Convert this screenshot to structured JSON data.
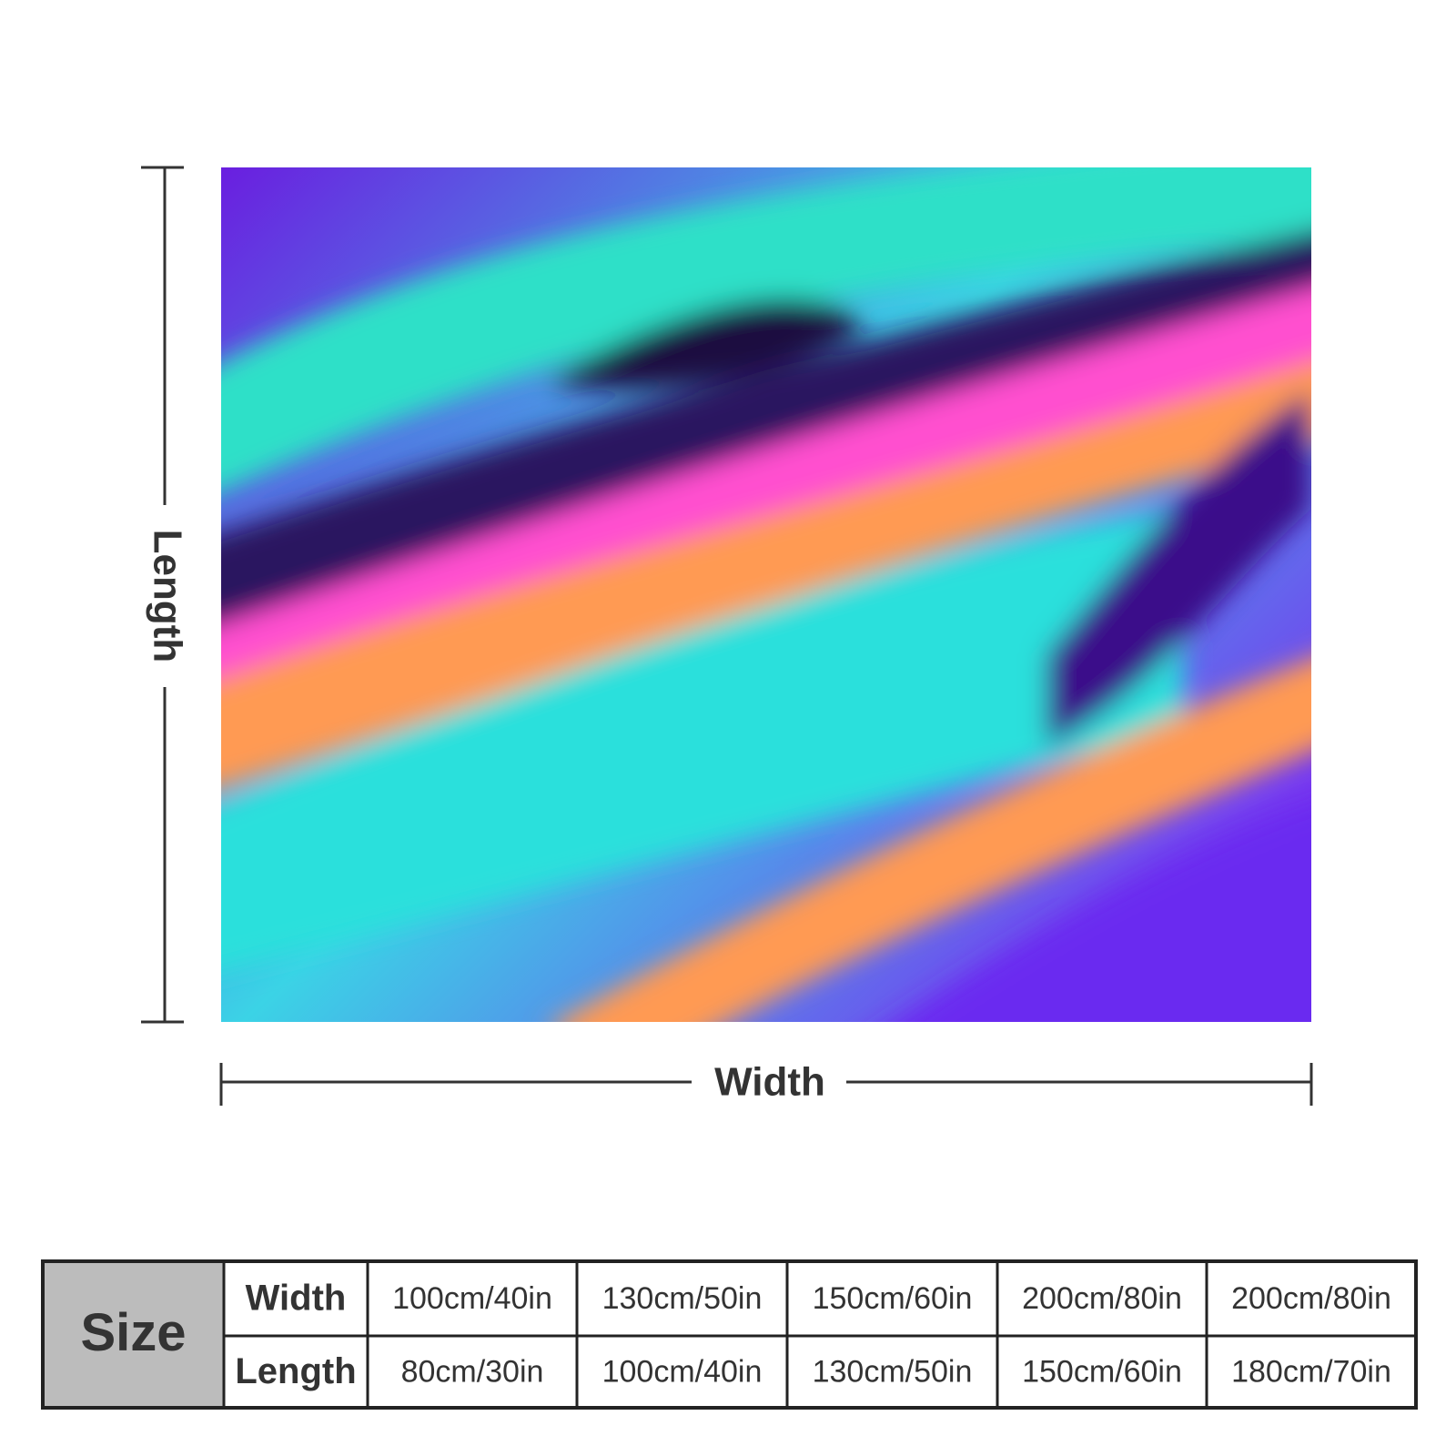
{
  "diagram": {
    "length_label": "Length",
    "width_label": "Width"
  },
  "table": {
    "corner": "Size",
    "rows": [
      [
        "Width",
        "100cm/40in",
        "130cm/50in",
        "150cm/60in",
        "200cm/80in",
        "200cm/80in"
      ],
      [
        "Length",
        "80cm/30in",
        "100cm/40in",
        "130cm/50in",
        "150cm/60in",
        "180cm/70in"
      ]
    ]
  }
}
